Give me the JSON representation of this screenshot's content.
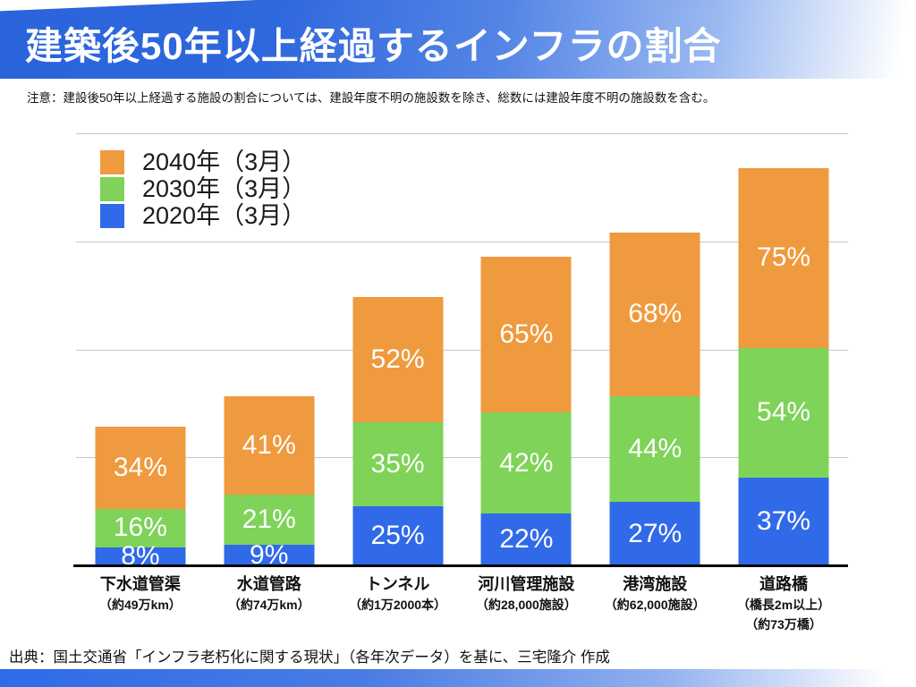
{
  "page": {
    "title": "建築後50年以上経過するインフラの割合",
    "note": "注意：建設後50年以上経過する施設の割合については、建設年度不明の施設数を除き、総数には建設年度不明の施設数を含む。",
    "source": "出典：国土交通省「インフラ老朽化に関する現状」（各年次データ）を基に、三宅隆介 作成"
  },
  "colors": {
    "banner_blue": "#2a63db",
    "bar_2020": "#306ae9",
    "bar_2030": "#7ed358",
    "bar_2040": "#ef9a3e",
    "gridline": "#c6c6c6",
    "axis": "#000000",
    "value_label": "#ffffff"
  },
  "legend": [
    {
      "key": "2040",
      "label": "2040年（3月）"
    },
    {
      "key": "2030",
      "label": "2030年（3月）"
    },
    {
      "key": "2020",
      "label": "2020年（3月）"
    }
  ],
  "chart_data": {
    "type": "bar",
    "stacked": true,
    "title": "建築後50年以上経過するインフラの割合",
    "xlabel": "",
    "ylabel": "",
    "categories": [
      {
        "name": "下水道管渠",
        "sublabels": [
          "（約49万km）"
        ]
      },
      {
        "name": "水道管路",
        "sublabels": [
          "（約74万km）"
        ]
      },
      {
        "name": "トンネル",
        "sublabels": [
          "（約1万2000本）"
        ]
      },
      {
        "name": "河川管理施設",
        "sublabels": [
          "（約28,000施設）"
        ]
      },
      {
        "name": "港湾施設",
        "sublabels": [
          "（約62,000施設）"
        ]
      },
      {
        "name": "道路橋",
        "sublabels": [
          "（橋長2m以上）",
          "（約73万橋）"
        ]
      }
    ],
    "series": [
      {
        "key": "2020",
        "name": "2020年（3月）",
        "values": [
          8,
          9,
          25,
          22,
          27,
          37
        ],
        "labels": [
          "8%",
          "9%",
          "25%",
          "22%",
          "27%",
          "37%"
        ]
      },
      {
        "key": "2030",
        "name": "2030年（3月）",
        "values": [
          16,
          21,
          35,
          42,
          44,
          54
        ],
        "labels": [
          "16%",
          "21%",
          "35%",
          "42%",
          "44%",
          "54%"
        ]
      },
      {
        "key": "2040",
        "name": "2040年（3月）",
        "values": [
          34,
          41,
          52,
          65,
          68,
          75
        ],
        "labels": [
          "34%",
          "41%",
          "52%",
          "65%",
          "68%",
          "75%"
        ]
      }
    ],
    "stack_order_bottom_to_top": [
      "2020",
      "2030",
      "2040"
    ],
    "y_axis": {
      "stack_units_max": 180,
      "gridline_interval_units": 45,
      "gridlines_visible": true,
      "tick_labels_visible": false
    },
    "legend_position": "top-left-inside",
    "value_label_format": "percent"
  }
}
